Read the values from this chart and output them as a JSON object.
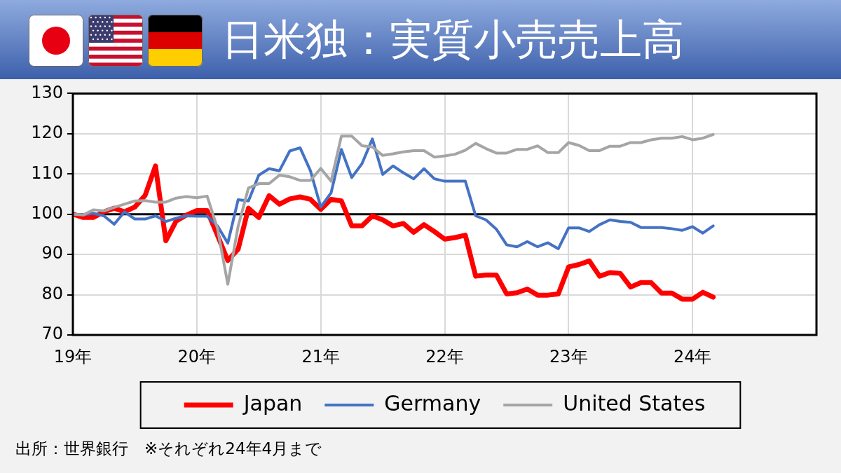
{
  "chart_data": {
    "type": "line",
    "title": "日米独：実質小売売上高",
    "x": [
      "2019-01",
      "2019-02",
      "2019-03",
      "2019-04",
      "2019-05",
      "2019-06",
      "2019-07",
      "2019-08",
      "2019-09",
      "2019-10",
      "2019-11",
      "2019-12",
      "2020-01",
      "2020-02",
      "2020-03",
      "2020-04",
      "2020-05",
      "2020-06",
      "2020-07",
      "2020-08",
      "2020-09",
      "2020-10",
      "2020-11",
      "2020-12",
      "2021-01",
      "2021-02",
      "2021-03",
      "2021-04",
      "2021-05",
      "2021-06",
      "2021-07",
      "2021-08",
      "2021-09",
      "2021-10",
      "2021-11",
      "2021-12",
      "2022-01",
      "2022-02",
      "2022-03",
      "2022-04",
      "2022-05",
      "2022-06",
      "2022-07",
      "2022-08",
      "2022-09",
      "2022-10",
      "2022-11",
      "2022-12",
      "2023-01",
      "2023-02",
      "2023-03",
      "2023-04",
      "2023-05",
      "2023-06",
      "2023-07",
      "2023-08",
      "2023-09",
      "2023-10",
      "2023-11",
      "2023-12",
      "2024-01",
      "2024-02",
      "2024-03"
    ],
    "xlim": [
      "2019-01",
      "2025-01"
    ],
    "xticks": [
      {
        "value": "2019-01",
        "label": "19年"
      },
      {
        "value": "2020-01",
        "label": "20年"
      },
      {
        "value": "2021-01",
        "label": "21年"
      },
      {
        "value": "2022-01",
        "label": "22年"
      },
      {
        "value": "2023-01",
        "label": "23年"
      },
      {
        "value": "2024-01",
        "label": "24年"
      }
    ],
    "ylim": [
      70,
      130
    ],
    "yticks": [
      70,
      80,
      90,
      100,
      110,
      120,
      130
    ],
    "series": [
      {
        "name": "Japan",
        "color": "#ff0000",
        "values": [
          100,
          99.2,
          99.2,
          100.6,
          101.5,
          100.6,
          101.8,
          104.7,
          112,
          93.4,
          98.3,
          99.8,
          100.9,
          100.9,
          94.8,
          88.5,
          91.3,
          101.5,
          99.2,
          104.6,
          102.5,
          103.8,
          104.3,
          103.7,
          101.2,
          103.7,
          103.3,
          97.1,
          97.1,
          99.6,
          98.6,
          97.1,
          97.7,
          95.5,
          97.4,
          95.7,
          93.8,
          94.2,
          94.8,
          84.6,
          84.9,
          84.9,
          80.2,
          80.5,
          81.4,
          79.9,
          79.9,
          80.2,
          86.9,
          87.5,
          88.4,
          84.6,
          85.5,
          85.3,
          81.9,
          83,
          83,
          80.4,
          80.4,
          78.9,
          78.9,
          80.6,
          79.4
        ]
      },
      {
        "name": "Germany",
        "color": "#4472c4",
        "values": [
          100,
          99.9,
          100.2,
          99.6,
          97.5,
          100.6,
          98.8,
          98.8,
          99.6,
          98.2,
          99,
          99.6,
          99.5,
          99.5,
          97.1,
          92.8,
          103.6,
          103.3,
          109.7,
          111.3,
          110.8,
          115.7,
          116.5,
          110.8,
          101.8,
          105.3,
          116.1,
          109.1,
          112.6,
          118.7,
          109.9,
          112,
          110.3,
          108.8,
          111.3,
          108.8,
          108.2,
          108.2,
          108.2,
          99.6,
          98.6,
          96.3,
          92.4,
          91.9,
          93.2,
          91.9,
          92.9,
          91.4,
          96.6,
          96.6,
          95.7,
          97.4,
          98.6,
          98.2,
          98,
          96.7,
          96.7,
          96.7,
          96.4,
          96,
          96.9,
          95.3,
          97.1
        ]
      },
      {
        "name": "United States",
        "color": "#a5a5a5",
        "values": [
          100,
          99.8,
          101.1,
          100.8,
          101.7,
          102.5,
          103.3,
          103.4,
          103,
          103,
          104,
          104.4,
          104.1,
          104.5,
          96.5,
          82.6,
          97,
          106.5,
          107.6,
          107.6,
          109.7,
          109.3,
          108.4,
          108.4,
          111.4,
          108.2,
          119.4,
          119.4,
          117,
          116.7,
          114.6,
          115,
          115.5,
          115.8,
          115.8,
          114.2,
          114.5,
          114.9,
          115.9,
          117.6,
          116.3,
          115.2,
          115.2,
          116.1,
          116.1,
          117,
          115.3,
          115.3,
          117.8,
          117.1,
          115.8,
          115.8,
          116.9,
          116.9,
          117.8,
          117.8,
          118.5,
          118.9,
          118.9,
          119.3,
          118.5,
          118.9,
          119.8
        ]
      }
    ],
    "ref_lines": [
      {
        "axis": "y",
        "value": 100,
        "color": "#000000"
      }
    ],
    "grid": true,
    "legend": "bottom",
    "marker": "none",
    "line_style": "solid",
    "annotations": [
      "出所：世界銀行　※それぞれ24年4月まで"
    ]
  }
}
